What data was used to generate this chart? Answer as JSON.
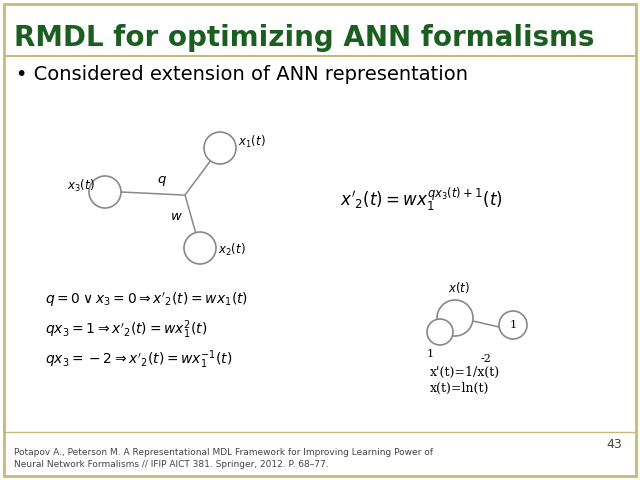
{
  "title": "RMDL for optimizing ANN formalisms",
  "title_color": "#1a5e20",
  "title_fontsize": 20,
  "bullet_text": "Considered extension of ANN representation",
  "bullet_fontsize": 14,
  "bg_color": "#ffffff",
  "border_color": "#c8b87a",
  "footer_text": "Potapov A., Peterson M. A Representational MDL Framework for Improving Learning Power of\nNeural Network Formalisms // IFIP AICT 381. Springer, 2012. P. 68–77.",
  "page_number": "43",
  "node_edge_color": "#888888",
  "line_color": "#888888"
}
